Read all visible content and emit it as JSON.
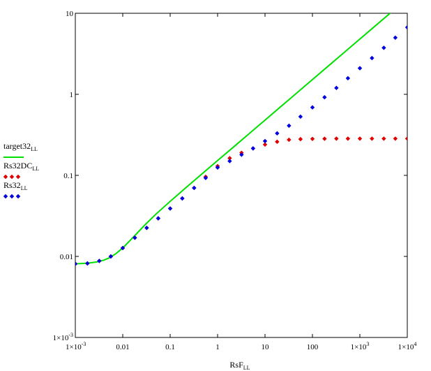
{
  "chart_data": {
    "type": "scatter",
    "xlabel": "RsF",
    "xlabel_sub": "LL",
    "xscale": "log",
    "yscale": "log",
    "xlim": [
      0.001,
      10000
    ],
    "ylim": [
      0.001,
      10
    ],
    "grid": false,
    "legend_placement": "left",
    "x_ticks": [
      {
        "value": 0.001,
        "label": "1×10",
        "sup": "-3"
      },
      {
        "value": 0.01,
        "label": "0.01",
        "sup": ""
      },
      {
        "value": 0.1,
        "label": "0.1",
        "sup": ""
      },
      {
        "value": 1,
        "label": "1",
        "sup": ""
      },
      {
        "value": 10,
        "label": "10",
        "sup": ""
      },
      {
        "value": 100,
        "label": "100",
        "sup": ""
      },
      {
        "value": 1000,
        "label": "1×10",
        "sup": "3"
      },
      {
        "value": 10000,
        "label": "1×10",
        "sup": "4"
      }
    ],
    "y_ticks": [
      {
        "value": 0.001,
        "label": "1×10",
        "sup": "-3"
      },
      {
        "value": 0.01,
        "label": "0.01",
        "sup": ""
      },
      {
        "value": 0.1,
        "label": "0.1",
        "sup": ""
      },
      {
        "value": 1,
        "label": "1",
        "sup": ""
      },
      {
        "value": 10,
        "label": "10",
        "sup": ""
      }
    ],
    "series": [
      {
        "name": "target32",
        "name_sub": "LL",
        "kind": "line",
        "color": "#00e000",
        "x": [
          0.001,
          0.0015,
          0.002,
          0.003,
          0.004,
          0.005,
          0.007,
          0.01,
          0.015,
          0.02,
          0.03,
          0.05,
          0.1,
          0.2,
          0.5,
          1,
          2,
          5,
          10,
          20,
          50,
          100,
          200,
          500,
          1000,
          2000,
          5000,
          10000
        ],
        "y": [
          0.0081,
          0.0082,
          0.0083,
          0.0086,
          0.009,
          0.0095,
          0.0107,
          0.0127,
          0.0162,
          0.0193,
          0.0248,
          0.0332,
          0.0478,
          0.068,
          0.1078,
          0.1525,
          0.215,
          0.34,
          0.481,
          0.68,
          1.075,
          1.52,
          2.15,
          3.4,
          4.81,
          6.8,
          10.75,
          15.2
        ]
      },
      {
        "name": "Rs32DC",
        "name_sub": "LL",
        "kind": "markers",
        "color": "#e00000",
        "x": [
          0.001,
          0.0018,
          0.0032,
          0.0056,
          0.01,
          0.018,
          0.032,
          0.056,
          0.1,
          0.18,
          0.32,
          0.56,
          1,
          1.8,
          3.2,
          5.6,
          10,
          18,
          32,
          56,
          100,
          180,
          320,
          560,
          1000,
          1800,
          3200,
          5600,
          10000
        ],
        "y": [
          0.0081,
          0.0082,
          0.0088,
          0.01,
          0.0127,
          0.017,
          0.0225,
          0.0295,
          0.039,
          0.052,
          0.07,
          0.096,
          0.13,
          0.163,
          0.19,
          0.215,
          0.24,
          0.26,
          0.275,
          0.28,
          0.282,
          0.283,
          0.284,
          0.284,
          0.284,
          0.284,
          0.284,
          0.284,
          0.284
        ]
      },
      {
        "name": "Rs32",
        "name_sub": "LL",
        "kind": "markers",
        "color": "#0000e0",
        "x": [
          0.001,
          0.0018,
          0.0032,
          0.0056,
          0.01,
          0.018,
          0.032,
          0.056,
          0.1,
          0.18,
          0.32,
          0.56,
          1,
          1.8,
          3.2,
          5.6,
          10,
          18,
          32,
          56,
          100,
          180,
          320,
          560,
          1000,
          1800,
          3200,
          5600,
          10000
        ],
        "y": [
          0.0081,
          0.0082,
          0.0088,
          0.01,
          0.0127,
          0.017,
          0.0225,
          0.0295,
          0.039,
          0.052,
          0.07,
          0.093,
          0.125,
          0.15,
          0.18,
          0.215,
          0.265,
          0.33,
          0.41,
          0.53,
          0.69,
          0.92,
          1.2,
          1.58,
          2.1,
          2.8,
          3.75,
          5.0,
          6.7
        ]
      }
    ]
  }
}
